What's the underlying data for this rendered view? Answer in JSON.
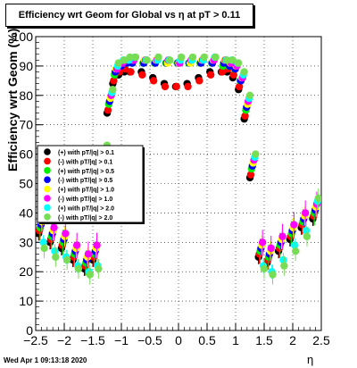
{
  "title": "Efficiency wrt Geom for Global vs   η at pT > 0.11",
  "footer_timestamp": "Wed Apr  1 09:13:18 2020",
  "chart_data": {
    "type": "scatter",
    "title": "Efficiency wrt Geom for Global vs   η at pT > 0.11",
    "xlabel": "η",
    "ylabel": "Efficiency wrt Geom (%)",
    "xlim": [
      -2.5,
      2.5
    ],
    "ylim": [
      0,
      100
    ],
    "xticks": [
      "−2.5",
      "−2",
      "−1.5",
      "−1",
      "−0.5",
      "0",
      "0.5",
      "1",
      "1.5",
      "2",
      "2.5"
    ],
    "yticks": [
      "0",
      "10",
      "20",
      "30",
      "40",
      "50",
      "60",
      "70",
      "80",
      "90",
      "100"
    ],
    "grid": true,
    "legend_position": "left-middle",
    "x": [
      -2.4,
      -2.2,
      -2.0,
      -1.8,
      -1.6,
      -1.45,
      -1.3,
      -1.2,
      -1.1,
      -1.0,
      -0.9,
      -0.8,
      -0.6,
      -0.4,
      -0.2,
      0.0,
      0.2,
      0.4,
      0.6,
      0.8,
      0.9,
      1.0,
      1.1,
      1.2,
      1.3,
      1.45,
      1.6,
      1.8,
      2.0,
      2.2,
      2.4
    ],
    "series": [
      {
        "name": "(+) with pT/|q| > 0.1",
        "color": "#000000",
        "values": [
          33,
          30,
          28,
          24,
          21,
          24,
          55,
          74,
          84,
          87,
          88,
          88,
          88,
          86,
          84,
          83,
          84,
          86,
          88,
          88,
          88,
          86,
          82,
          72,
          52,
          25,
          23,
          27,
          31,
          35,
          38
        ]
      },
      {
        "name": "(-) with pT/|q| > 0.1",
        "color": "#ff0000",
        "values": [
          34,
          31,
          29,
          25,
          22,
          25,
          56,
          75,
          85,
          88,
          89,
          88,
          87,
          85,
          83,
          83,
          83,
          85,
          87,
          88,
          89,
          87,
          83,
          73,
          53,
          26,
          24,
          28,
          32,
          36,
          39
        ]
      },
      {
        "name": "(+) with pT/|q| > 0.5",
        "color": "#00ee00",
        "values": [
          35,
          32,
          30,
          26,
          23,
          26,
          58,
          77,
          87,
          90,
          91,
          91,
          91,
          91,
          91,
          91,
          91,
          91,
          91,
          90,
          90,
          89,
          85,
          75,
          55,
          27,
          25,
          29,
          33,
          37,
          40
        ]
      },
      {
        "name": "(-) with pT/|q| > 0.5",
        "color": "#0000ff",
        "values": [
          36,
          33,
          31,
          27,
          24,
          27,
          59,
          78,
          88,
          90,
          91,
          91,
          91,
          91,
          91,
          91,
          91,
          91,
          91,
          91,
          90,
          89,
          85,
          76,
          56,
          28,
          26,
          30,
          34,
          38,
          41
        ]
      },
      {
        "name": "(+) with pT/|q| > 1.0",
        "color": "#ffff00",
        "values": [
          37,
          34,
          32,
          28,
          25,
          28,
          60,
          79,
          89,
          91,
          92,
          92,
          92,
          92,
          91,
          91,
          91,
          92,
          92,
          92,
          91,
          90,
          86,
          77,
          57,
          29,
          27,
          31,
          35,
          39,
          42
        ]
      },
      {
        "name": "(-) with pT/|q| > 1.0",
        "color": "#ff00ff",
        "values": [
          38,
          35,
          33,
          29,
          26,
          29,
          61,
          80,
          89,
          91,
          92,
          92,
          92,
          92,
          92,
          91,
          92,
          92,
          92,
          92,
          91,
          90,
          86,
          78,
          58,
          30,
          28,
          32,
          36,
          40,
          43
        ]
      },
      {
        "name": "(+) with pT/|q| > 2.0",
        "color": "#00ffff",
        "values": [
          30,
          27,
          25,
          22,
          20,
          22,
          62,
          81,
          90,
          92,
          92,
          93,
          92,
          92,
          92,
          92,
          92,
          92,
          93,
          92,
          92,
          91,
          87,
          79,
          59,
          22,
          20,
          24,
          29,
          34,
          44
        ]
      },
      {
        "name": "(-) with pT/|q| > 2.0",
        "color": "#77dd55",
        "values": [
          28,
          25,
          24,
          21,
          19,
          21,
          63,
          82,
          91,
          92,
          93,
          93,
          92,
          93,
          92,
          93,
          93,
          93,
          93,
          92,
          92,
          91,
          88,
          80,
          60,
          21,
          19,
          22,
          27,
          32,
          45
        ]
      }
    ]
  }
}
